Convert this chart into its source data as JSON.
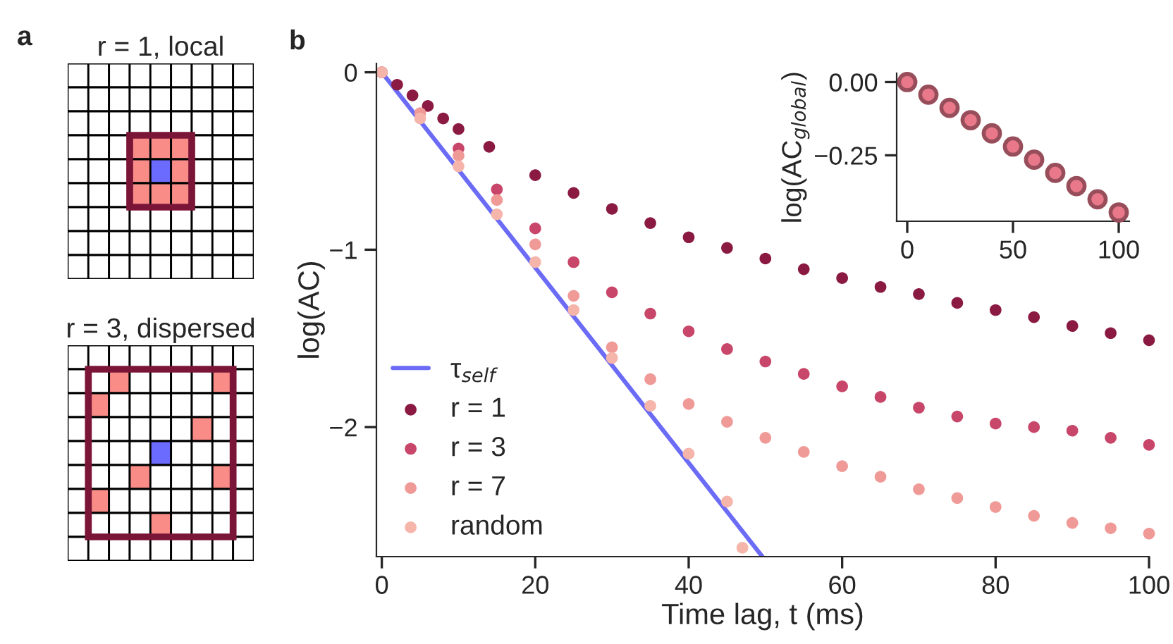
{
  "chart_data": [
    {
      "type": "other",
      "annotations": [
        "a",
        "r = 1, local",
        "r = 3, dispersed"
      ]
    },
    {
      "type": "scatter",
      "annotations": [
        "b"
      ],
      "xlabel": "Time lag, t (ms)",
      "ylabel": "log(AC)",
      "xlim": [
        -0.7,
        100
      ],
      "ylim": [
        -2.73,
        0.05
      ],
      "xticks": [
        0,
        20,
        40,
        60,
        80,
        100
      ],
      "yticks": [
        {
          "value": 0,
          "label": "0"
        },
        {
          "value": -1,
          "label": "−1"
        },
        {
          "value": -2,
          "label": "−2"
        }
      ],
      "legend": "bottom left",
      "marker": "circle",
      "grid": false,
      "series": [
        {
          "name": "τ$_{self}$",
          "type": "line",
          "color": "#6b6bf5",
          "line_style": "solid",
          "marker": "none",
          "x": [
            0,
            49.6
          ],
          "values": [
            0,
            -2.73
          ]
        },
        {
          "name": "r = 1",
          "color": "#8b1a42",
          "x": [
            0,
            2,
            4,
            6,
            8,
            10,
            14,
            20,
            25,
            30,
            35,
            40,
            45,
            50,
            55,
            60,
            65,
            70,
            75,
            80,
            85,
            90,
            95,
            100
          ],
          "values": [
            0,
            -0.07,
            -0.13,
            -0.19,
            -0.26,
            -0.32,
            -0.42,
            -0.58,
            -0.68,
            -0.77,
            -0.85,
            -0.93,
            -0.99,
            -1.05,
            -1.11,
            -1.16,
            -1.21,
            -1.25,
            -1.3,
            -1.34,
            -1.38,
            -1.43,
            -1.47,
            -1.51
          ]
        },
        {
          "name": "r = 3",
          "color": "#c8466a",
          "x": [
            0,
            10,
            15,
            20,
            25,
            30,
            35,
            40,
            45,
            50,
            55,
            60,
            65,
            70,
            75,
            80,
            85,
            90,
            95,
            100
          ],
          "values": [
            0,
            -0.43,
            -0.66,
            -0.88,
            -1.07,
            -1.24,
            -1.36,
            -1.46,
            -1.56,
            -1.63,
            -1.7,
            -1.77,
            -1.83,
            -1.89,
            -1.94,
            -1.98,
            -2.0,
            -2.02,
            -2.06,
            -2.1
          ]
        },
        {
          "name": "r = 7",
          "color": "#f09a98",
          "x": [
            0,
            5,
            10,
            15,
            20,
            25,
            30,
            35,
            40,
            45,
            50,
            55,
            60,
            65,
            70,
            75,
            80,
            85,
            90,
            95,
            100
          ],
          "values": [
            0,
            -0.23,
            -0.47,
            -0.72,
            -0.97,
            -1.26,
            -1.55,
            -1.73,
            -1.87,
            -1.97,
            -2.06,
            -2.14,
            -2.22,
            -2.28,
            -2.35,
            -2.4,
            -2.45,
            -2.5,
            -2.54,
            -2.57,
            -2.6
          ]
        },
        {
          "name": "random",
          "color": "#f5b5ab",
          "x": [
            0,
            5,
            10,
            15,
            20,
            25,
            30,
            35,
            40,
            45,
            47
          ],
          "values": [
            0,
            -0.26,
            -0.53,
            -0.8,
            -1.07,
            -1.34,
            -1.61,
            -1.88,
            -2.15,
            -2.42,
            -2.68
          ]
        }
      ]
    },
    {
      "type": "scatter",
      "ylabel": "log(AC$_{global}$)",
      "xlim": [
        -5,
        105
      ],
      "ylim": [
        -0.475,
        0.03
      ],
      "xticks": [
        0,
        50,
        100
      ],
      "yticks": [
        {
          "value": 0,
          "label": "0.00"
        },
        {
          "value": -0.25,
          "label": "−0.25"
        }
      ],
      "marker": "circle",
      "grid": false,
      "series": [
        {
          "color": "#e8788a",
          "x": [
            0,
            10,
            20,
            30,
            40,
            50,
            60,
            70,
            80,
            90,
            100
          ],
          "values": [
            0,
            -0.043,
            -0.088,
            -0.13,
            -0.175,
            -0.22,
            -0.265,
            -0.31,
            -0.355,
            -0.4,
            -0.445
          ]
        }
      ]
    }
  ]
}
